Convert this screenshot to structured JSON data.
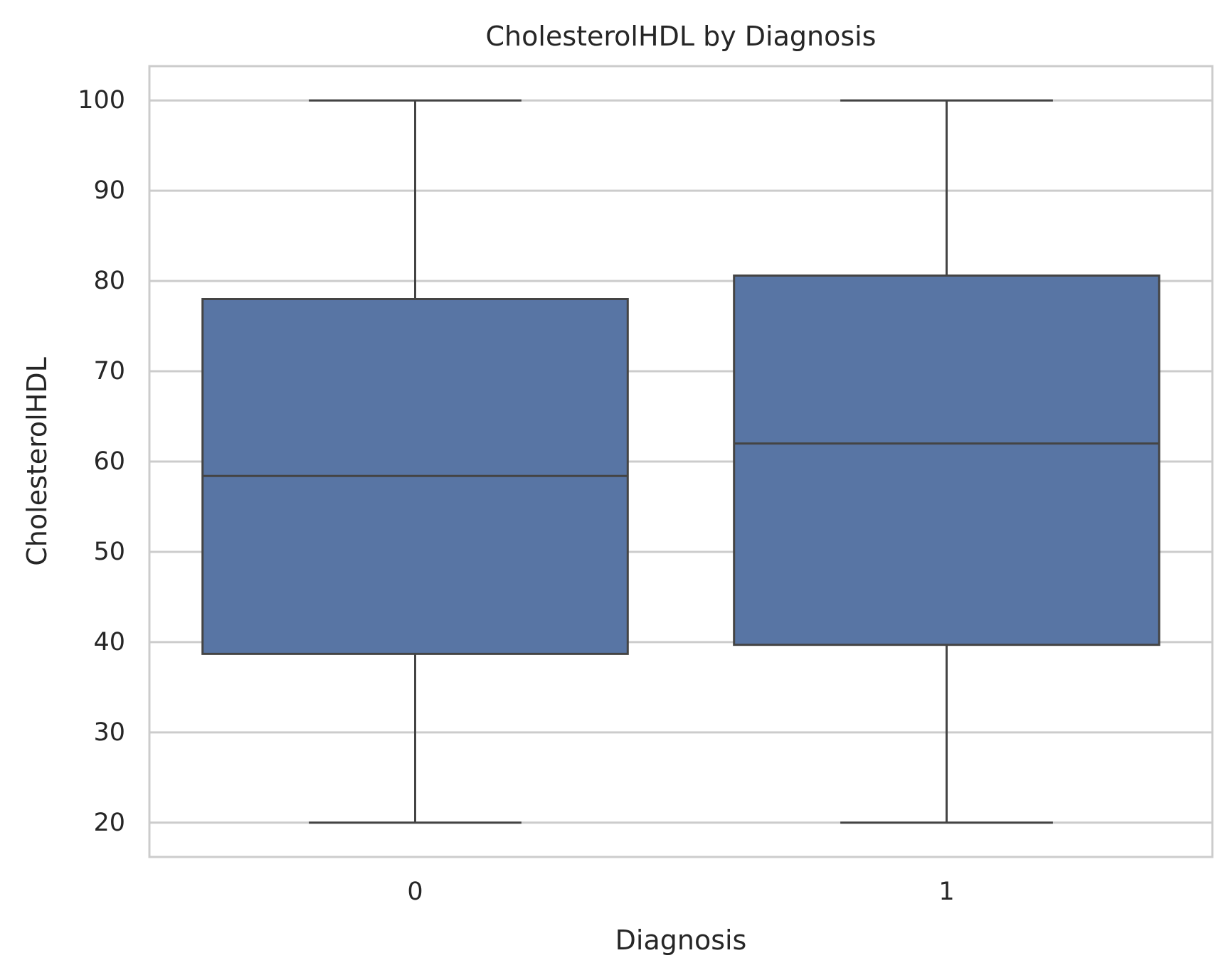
{
  "chart_data": {
    "type": "box",
    "title": "CholesterolHDL by Diagnosis",
    "xlabel": "Diagnosis",
    "ylabel": "CholesterolHDL",
    "categories": [
      "0",
      "1"
    ],
    "boxes": [
      {
        "category": "0",
        "whisker_low": 20,
        "q1": 38.7,
        "median": 58.4,
        "q3": 78,
        "whisker_high": 100
      },
      {
        "category": "1",
        "whisker_low": 20,
        "q1": 39.7,
        "median": 62,
        "q3": 80.6,
        "whisker_high": 100
      }
    ],
    "ylim": [
      16.2,
      103.8
    ],
    "yticks": [
      20,
      30,
      40,
      50,
      60,
      70,
      80,
      90,
      100
    ],
    "grid": "horizontal",
    "legend": "none",
    "colors": {
      "box_fill": "#5875a4",
      "box_line": "#444444",
      "grid": "#cccccc",
      "frame": "#cccccc",
      "text": "#262626"
    }
  }
}
